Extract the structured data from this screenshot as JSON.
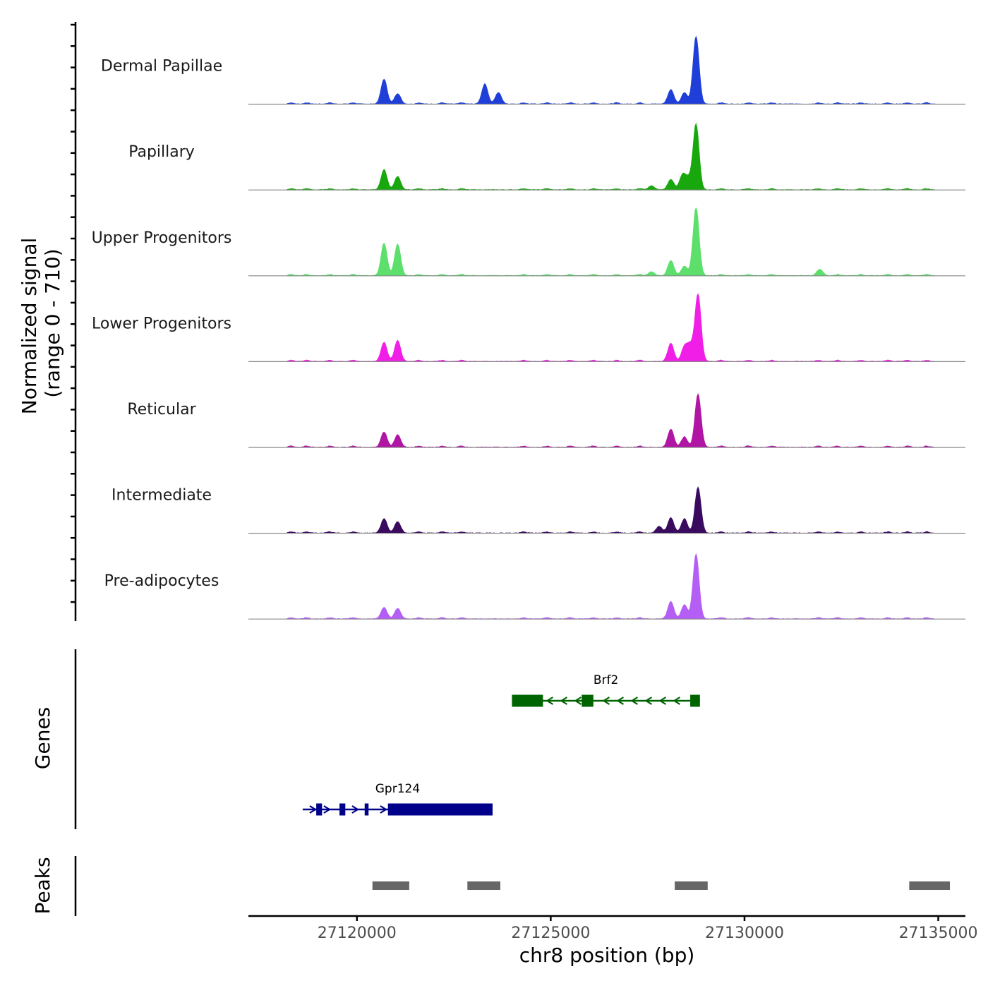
{
  "chart_data": {
    "type": "area",
    "chromosome": "chr8",
    "xlim": [
      27117200,
      27135700
    ],
    "xlabel": "chr8 position (bp)",
    "ylabel": "Normalized signal",
    "ylabel_range": "(range 0 - 710)",
    "ylim": [
      0,
      710
    ],
    "x_ticks": [
      27120000,
      27125000,
      27130000,
      27135000
    ],
    "x_tick_labels": [
      "27120000",
      "27125000",
      "27130000",
      "27135000"
    ],
    "coverage_tracks": [
      {
        "name": "Dermal Papillae",
        "color": "#1f3fd8",
        "peaks": [
          [
            27120700,
            260
          ],
          [
            27121050,
            110
          ],
          [
            27123300,
            210
          ],
          [
            27123650,
            120
          ],
          [
            27128100,
            150
          ],
          [
            27128450,
            120
          ],
          [
            27128750,
            710
          ]
        ]
      },
      {
        "name": "Papillary",
        "color": "#18a80e",
        "peaks": [
          [
            27120700,
            210
          ],
          [
            27121050,
            140
          ],
          [
            27127600,
            40
          ],
          [
            27128100,
            110
          ],
          [
            27128400,
            150
          ],
          [
            27128550,
            110
          ],
          [
            27128750,
            690
          ]
        ]
      },
      {
        "name": "Upper Progenitors",
        "color": "#5ddf6c",
        "peaks": [
          [
            27120700,
            340
          ],
          [
            27121050,
            330
          ],
          [
            27127600,
            40
          ],
          [
            27128100,
            160
          ],
          [
            27128450,
            100
          ],
          [
            27128750,
            720
          ],
          [
            27131950,
            55
          ]
        ]
      },
      {
        "name": "Lower Progenitors",
        "color": "#f01ee6",
        "peaks": [
          [
            27120700,
            200
          ],
          [
            27121050,
            220
          ],
          [
            27128100,
            190
          ],
          [
            27128450,
            150
          ],
          [
            27128600,
            160
          ],
          [
            27128800,
            710
          ]
        ]
      },
      {
        "name": "Reticular",
        "color": "#b015a4",
        "peaks": [
          [
            27120700,
            160
          ],
          [
            27121050,
            130
          ],
          [
            27128100,
            190
          ],
          [
            27128450,
            110
          ],
          [
            27128800,
            560
          ]
        ]
      },
      {
        "name": "Intermediate",
        "color": "#3a0a5e",
        "peaks": [
          [
            27120700,
            150
          ],
          [
            27121050,
            120
          ],
          [
            27127800,
            70
          ],
          [
            27128100,
            160
          ],
          [
            27128450,
            150
          ],
          [
            27128800,
            480
          ]
        ]
      },
      {
        "name": "Pre-adipocytes",
        "color": "#b55ef5",
        "peaks": [
          [
            27120700,
            120
          ],
          [
            27121050,
            110
          ],
          [
            27128100,
            180
          ],
          [
            27128450,
            150
          ],
          [
            27128750,
            680
          ]
        ]
      }
    ],
    "genes": [
      {
        "name": "Brf2",
        "strand": "-",
        "color": "#006400",
        "start": 27124000,
        "end": 27128850,
        "exons": [
          [
            27124000,
            27124800
          ],
          [
            27125800,
            27126100
          ],
          [
            27128600,
            27128850
          ]
        ]
      },
      {
        "name": "Gpr124",
        "strand": "+",
        "color": "#00008b",
        "start": 27118600,
        "end": 27123500,
        "exons": [
          [
            27118950,
            27119100
          ],
          [
            27119550,
            27119700
          ],
          [
            27120200,
            27120300
          ],
          [
            27120800,
            27123500
          ]
        ]
      }
    ],
    "genes_label": "Genes",
    "peaks_label": "Peaks",
    "peaks_color": "#666666",
    "peak_regions": [
      [
        27120400,
        27121350
      ],
      [
        27122850,
        27123700
      ],
      [
        27128200,
        27129050
      ],
      [
        27134250,
        27135300
      ]
    ]
  }
}
